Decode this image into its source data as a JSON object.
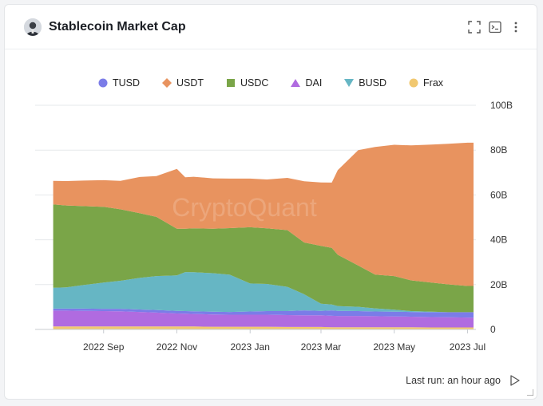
{
  "header": {
    "title": "Stablecoin Market Cap",
    "icons": [
      "expand-icon",
      "terminal-icon",
      "more-vertical-icon"
    ]
  },
  "footer": {
    "last_run": "Last run: an hour ago",
    "run_icon": "play-icon"
  },
  "watermark": "CryptoQuant",
  "colors": {
    "TUSD": "#7b7ce8",
    "USDT": "#e8935f",
    "USDC": "#7aa548",
    "DAI": "#b06be0",
    "BUSD": "#66b6c4",
    "Frax": "#f1c870"
  },
  "chart_data": {
    "type": "area",
    "stacked": true,
    "x": [
      "2022-07-21",
      "2022-08-01",
      "2022-08-15",
      "2022-09-01",
      "2022-09-15",
      "2022-10-01",
      "2022-10-15",
      "2022-11-01",
      "2022-11-08",
      "2022-11-15",
      "2022-12-01",
      "2022-12-15",
      "2023-01-01",
      "2023-01-15",
      "2023-02-01",
      "2023-02-15",
      "2023-03-01",
      "2023-03-10",
      "2023-03-15",
      "2023-04-01",
      "2023-04-15",
      "2023-05-01",
      "2023-05-15",
      "2023-06-01",
      "2023-06-15",
      "2023-07-01",
      "2023-07-06"
    ],
    "x_ticks": [
      "2022 Sep",
      "2022 Nov",
      "2023 Jan",
      "2023 Mar",
      "2023 May",
      "2023 Jul"
    ],
    "y_ticks": [
      "0",
      "20B",
      "40B",
      "60B",
      "80B",
      "100B"
    ],
    "ylim": [
      0,
      100
    ],
    "y_unit": "B",
    "grid": true,
    "legend_position": "top",
    "series": [
      {
        "name": "Frax",
        "values": [
          1.3,
          1.3,
          1.3,
          1.3,
          1.3,
          1.3,
          1.3,
          1.3,
          1.3,
          1.3,
          1.2,
          1.2,
          1.2,
          1.2,
          1.1,
          1.1,
          1.1,
          1.0,
          1.0,
          1.0,
          1.0,
          1.0,
          1.0,
          0.9,
          0.9,
          0.9,
          0.9
        ]
      },
      {
        "name": "DAI",
        "values": [
          7.1,
          7.1,
          7.0,
          6.9,
          6.8,
          6.5,
          6.2,
          5.8,
          5.7,
          5.6,
          5.5,
          5.4,
          5.4,
          5.4,
          5.3,
          5.2,
          5.2,
          5.1,
          5.0,
          5.0,
          4.9,
          4.8,
          4.7,
          4.6,
          4.5,
          4.4,
          4.3
        ]
      },
      {
        "name": "TUSD",
        "values": [
          0.9,
          0.9,
          1.0,
          1.0,
          1.1,
          1.1,
          1.2,
          1.2,
          1.2,
          1.2,
          1.2,
          1.2,
          1.4,
          1.6,
          1.8,
          2.2,
          2.0,
          2.4,
          2.3,
          2.2,
          2.1,
          2.1,
          2.1,
          2.2,
          2.3,
          2.4,
          2.5
        ]
      },
      {
        "name": "BUSD",
        "values": [
          9.3,
          9.5,
          10.5,
          11.7,
          12.5,
          14.1,
          15.1,
          15.8,
          17.4,
          17.4,
          17.2,
          16.6,
          12.5,
          12.1,
          10.8,
          7.2,
          3.2,
          2.6,
          2.1,
          1.9,
          1.4,
          0.9,
          0.4,
          0.2,
          0.0,
          0.0,
          0.0
        ]
      },
      {
        "name": "USDC",
        "values": [
          37.2,
          36.5,
          35.2,
          33.8,
          31.9,
          28.9,
          26.4,
          20.8,
          19.3,
          19.6,
          19.8,
          20.8,
          25.1,
          24.8,
          25.3,
          23.1,
          25.8,
          25.3,
          22.9,
          18.4,
          15.1,
          15.0,
          13.7,
          13.0,
          12.4,
          11.7,
          11.7
        ]
      },
      {
        "name": "USDT",
        "values": [
          10.5,
          10.9,
          11.4,
          11.9,
          12.7,
          16.1,
          18.2,
          26.7,
          23.0,
          23.0,
          22.5,
          22.1,
          21.7,
          21.8,
          23.3,
          27.3,
          28.3,
          29.1,
          37.8,
          51.5,
          56.9,
          58.6,
          60.2,
          61.6,
          62.7,
          63.9,
          63.9
        ]
      },
      {
        "name": "BUSD",
        "legend_only": true
      },
      {
        "name": "DAI",
        "legend_only": true
      }
    ],
    "legend": [
      {
        "name": "TUSD",
        "marker": "circle"
      },
      {
        "name": "USDT",
        "marker": "diamond"
      },
      {
        "name": "USDC",
        "marker": "square"
      },
      {
        "name": "DAI",
        "marker": "triangle-up"
      },
      {
        "name": "BUSD",
        "marker": "triangle-down"
      },
      {
        "name": "Frax",
        "marker": "circle"
      }
    ]
  }
}
